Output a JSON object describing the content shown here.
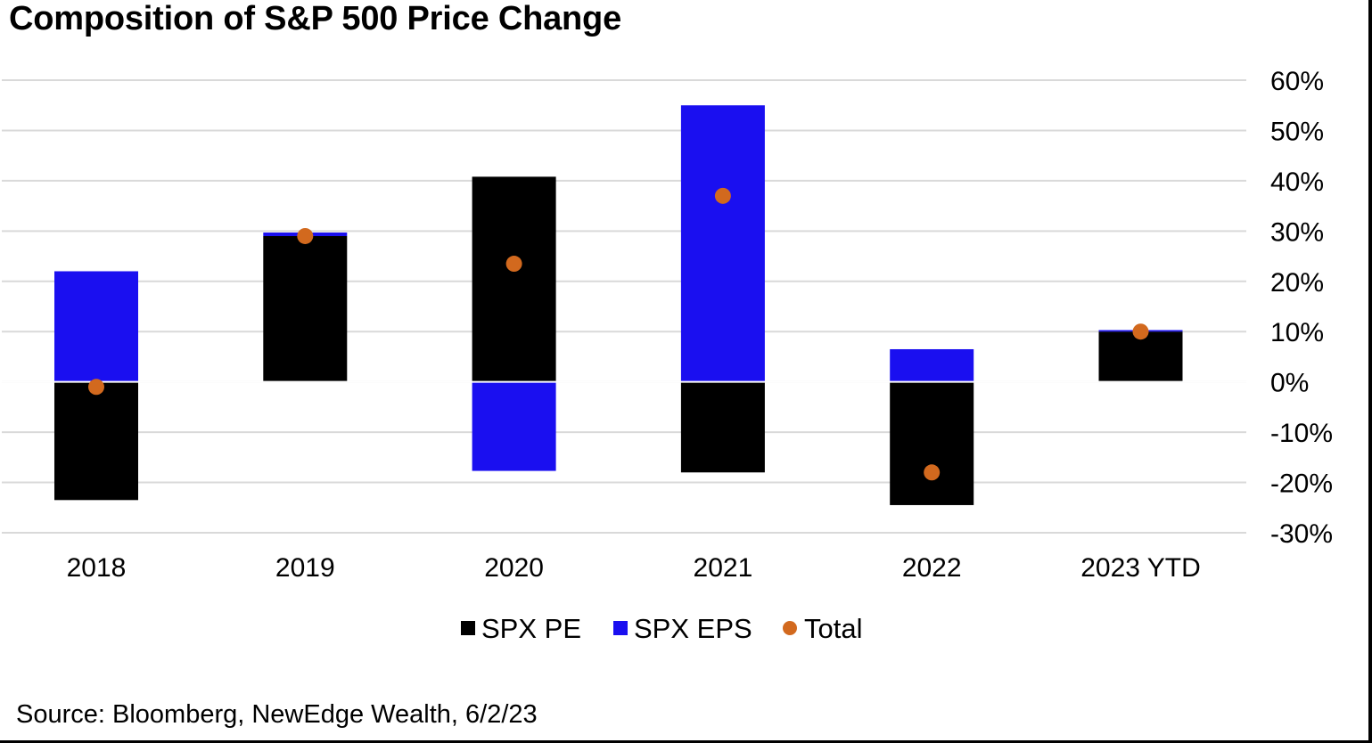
{
  "title": "Composition of S&P 500 Price Change",
  "source": "Source: Bloomberg, NewEdge Wealth, 6/2/23",
  "colors": {
    "pe": "#000000",
    "eps": "#1a0ff0",
    "total": "#d2691e",
    "grid": "#d9d9d9"
  },
  "chart_data": {
    "type": "bar",
    "stacked": true,
    "categories": [
      "2018",
      "2019",
      "2020",
      "2021",
      "2022",
      "2023 YTD"
    ],
    "series": [
      {
        "name": "SPX PE",
        "kind": "bar",
        "values": [
          -23.5,
          29.0,
          40.8,
          -18.0,
          -24.5,
          10.0
        ]
      },
      {
        "name": "SPX EPS",
        "kind": "bar",
        "values": [
          22.0,
          0.7,
          -17.7,
          55.0,
          6.5,
          0.3
        ]
      },
      {
        "name": "Total",
        "kind": "scatter",
        "values": [
          -1.0,
          29.0,
          23.5,
          37.0,
          -18.0,
          10.0
        ]
      }
    ],
    "ylim": [
      -30,
      60
    ],
    "yticks": [
      "-30%",
      "-20%",
      "-10%",
      "0%",
      "10%",
      "20%",
      "30%",
      "40%",
      "50%",
      "60%"
    ],
    "ytick_values": [
      -30,
      -20,
      -10,
      0,
      10,
      20,
      30,
      40,
      50,
      60
    ],
    "grid": true,
    "y_axis_side": "right",
    "legend_position": "bottom-center"
  }
}
